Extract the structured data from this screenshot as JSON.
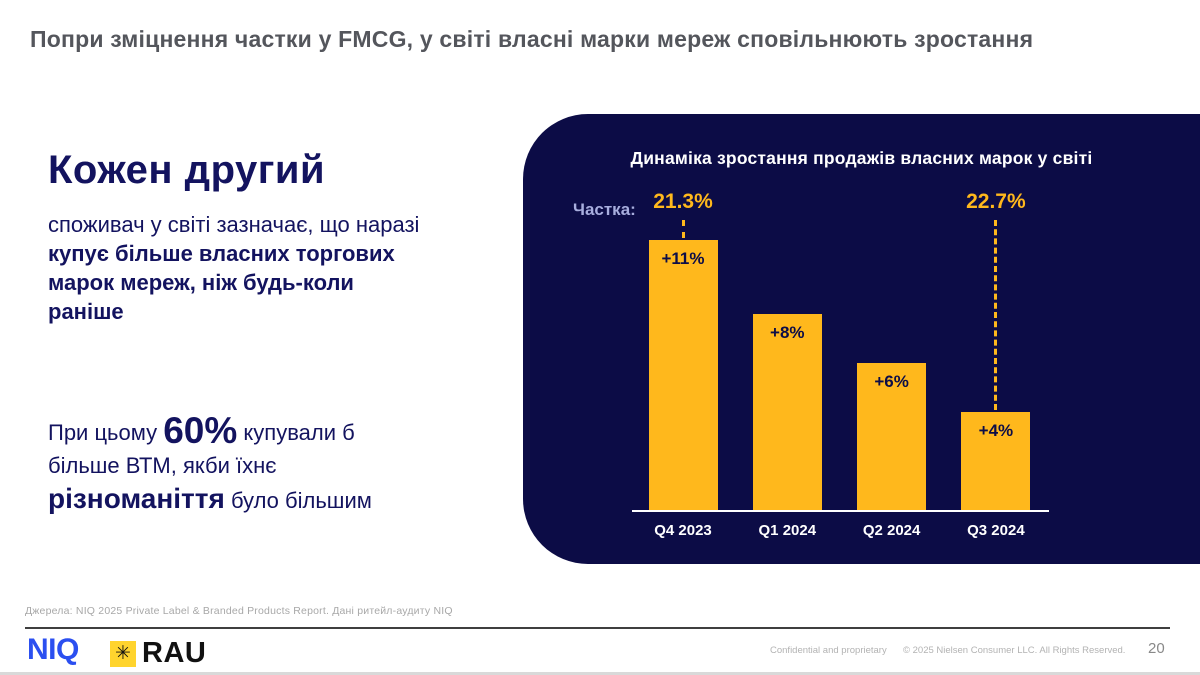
{
  "slide": {
    "title": "Попри зміцнення частки у FMCG, у світі власні марки мереж сповільнюють зростання"
  },
  "left": {
    "headline": "Кожен другий",
    "para1_regular": "споживач у світі зазначає, що наразі ",
    "para1_bold": "купує більше власних торгових марок мереж, ніж будь-коли раніше",
    "para2_prefix": "При цьому ",
    "para2_stat": "60%",
    "para2_mid": " купували б більше ВТМ, якби їхнє ",
    "para2_bold": "різноманіття",
    "para2_suffix": " було більшим"
  },
  "chart_data": {
    "type": "bar",
    "title": "Динаміка зростання продажів власних марок у світі",
    "categories": [
      "Q4 2023",
      "Q1 2024",
      "Q2 2024",
      "Q3 2024"
    ],
    "values": [
      11,
      8,
      6,
      4
    ],
    "value_labels": [
      "+11%",
      "+8%",
      "+6%",
      "+4%"
    ],
    "share_label": "Частка:",
    "share_annotations": [
      {
        "bar_index": 0,
        "label": "21.3%"
      },
      {
        "bar_index": 3,
        "label": "22.7%"
      }
    ],
    "ylim": [
      0,
      12
    ],
    "grid": false,
    "legend": false,
    "bar_color": "#ffb81c",
    "panel_color": "#0c0c46",
    "value_label_color": "#0d0d47",
    "share_value_color": "#ffb81c",
    "share_label_color": "#a8aede"
  },
  "footer": {
    "sources": "Джерела: NIQ 2025 Private Label & Branded Products Report. Дані ритейл-аудиту NIQ",
    "niq_logo": "NIQ",
    "rau_logo": "RAU",
    "rau_star_icon": "✳",
    "confidential": "Confidential and proprietary",
    "copyright": "© 2025 Nielsen Consumer LLC. All Rights Reserved.",
    "page_number": "20"
  },
  "colors": {
    "accent_yellow": "#ffb81c",
    "navy_panel": "#0c0c46",
    "text_navy": "#13135f",
    "title_gray": "#54565c",
    "niq_blue": "#2b4ff0",
    "rau_yellow": "#ffd42e"
  }
}
